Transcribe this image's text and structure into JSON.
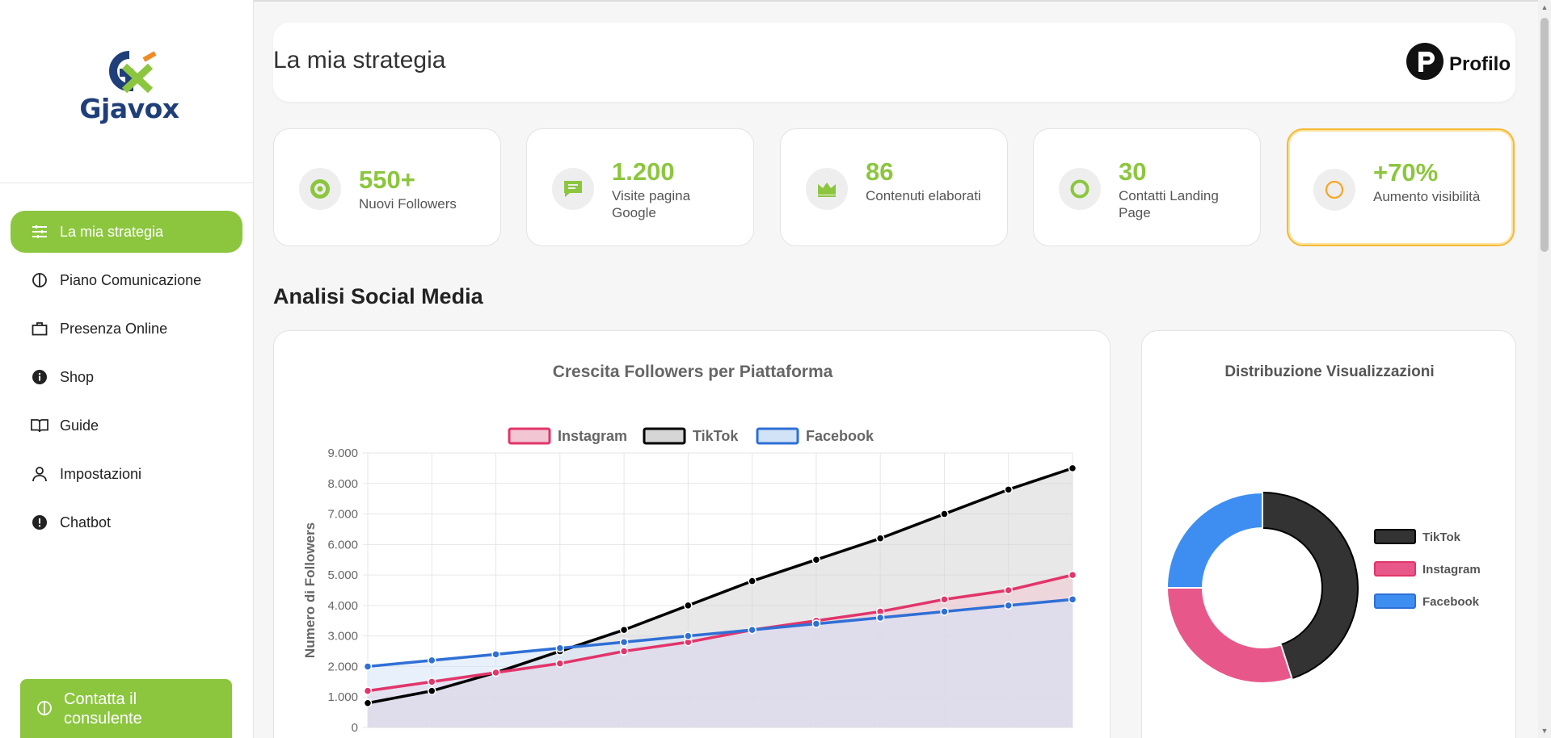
{
  "brand": {
    "name": "Gjavox",
    "green": "#8cc63f",
    "navy": "#1f3f7a",
    "orange": "#f08a24"
  },
  "sidebar": {
    "items": [
      {
        "label": "La mia strategia",
        "icon": "strategy-icon",
        "active": true
      },
      {
        "label": "Piano Comunicazione",
        "icon": "half-circle-icon"
      },
      {
        "label": "Presenza Online",
        "icon": "briefcase-icon"
      },
      {
        "label": "Shop",
        "icon": "info-icon"
      },
      {
        "label": "Guide",
        "icon": "book-icon"
      },
      {
        "label": "Impostazioni",
        "icon": "user-icon"
      },
      {
        "label": "Chatbot",
        "icon": "alert-icon"
      }
    ],
    "cta_label_line1": "Contatta il",
    "cta_label_line2": "consulente"
  },
  "header": {
    "title": "La mia strategia",
    "profile_label": "Profilo"
  },
  "stats": [
    {
      "value": "550+",
      "label": "Nuovi Followers",
      "icon": "target-icon"
    },
    {
      "value": "1.200",
      "label": "Visite pagina Google",
      "icon": "chat-icon"
    },
    {
      "value": "86",
      "label": "Contenuti elaborati",
      "icon": "crown-icon"
    },
    {
      "value": "30",
      "label": "Contatti Landing Page",
      "icon": "ring-icon"
    },
    {
      "value": "+70%",
      "label": "Aumento visibilità",
      "icon": "orange-ring-icon"
    }
  ],
  "section_title": "Analisi Social Media",
  "chart_data": [
    {
      "type": "line",
      "title": "Crescita Followers per Piattaforma",
      "ylabel": "Numero di Followers",
      "xlabel": "",
      "ylim": [
        0,
        9000
      ],
      "yticks": [
        "0",
        "1.000",
        "2.000",
        "3.000",
        "4.000",
        "5.000",
        "6.000",
        "7.000",
        "8.000",
        "9.000"
      ],
      "legend_position": "top",
      "grid": true,
      "x": [
        1,
        2,
        3,
        4,
        5,
        6,
        7,
        8,
        9,
        10,
        11,
        12
      ],
      "series": [
        {
          "name": "Instagram",
          "color": "#e2356a",
          "fill": "#f3c6d4",
          "values": [
            1200,
            1500,
            1800,
            2100,
            2500,
            2800,
            3200,
            3500,
            3800,
            4200,
            4500,
            5000
          ]
        },
        {
          "name": "TikTok",
          "color": "#000000",
          "fill": "#d6d6d6",
          "values": [
            800,
            1200,
            1800,
            2500,
            3200,
            4000,
            4800,
            5500,
            6200,
            7000,
            7800,
            8500
          ]
        },
        {
          "name": "Facebook",
          "color": "#2f6fd6",
          "fill": "#d3e3f7",
          "values": [
            2000,
            2200,
            2400,
            2600,
            2800,
            3000,
            3200,
            3400,
            3600,
            3800,
            4000,
            4200
          ]
        }
      ]
    },
    {
      "type": "pie",
      "title": "Distribuzione Visualizzazioni",
      "donut": true,
      "legend_position": "right",
      "slices": [
        {
          "name": "TikTok",
          "value": 45,
          "color": "#333333"
        },
        {
          "name": "Instagram",
          "value": 30,
          "color": "#e8578a"
        },
        {
          "name": "Facebook",
          "value": 25,
          "color": "#3d8ef0"
        }
      ]
    }
  ]
}
